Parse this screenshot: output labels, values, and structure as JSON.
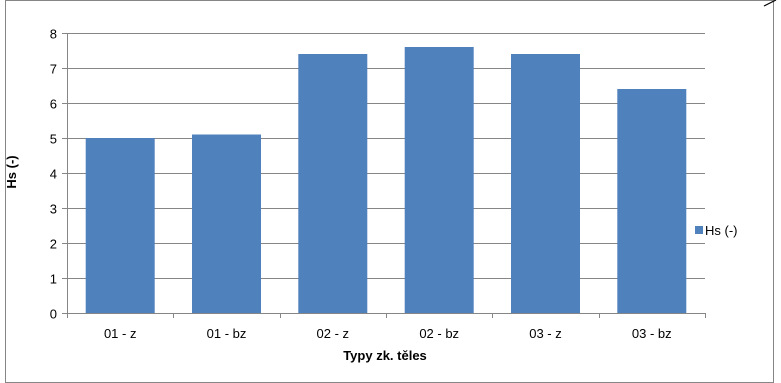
{
  "chart_data": {
    "type": "bar",
    "title": "",
    "xlabel": "Typy zk. těles",
    "ylabel": "Hs (-)",
    "categories": [
      "01 - z",
      "01 - bz",
      "02 - z",
      "02 - bz",
      "03 - z",
      "03 - bz"
    ],
    "series": [
      {
        "name": "Hs (-)",
        "values": [
          5.0,
          5.1,
          7.4,
          7.6,
          7.4,
          6.4
        ],
        "color": "#4f81bd"
      }
    ],
    "ylim": [
      0,
      8
    ],
    "yticks": [
      "0",
      "1",
      "2",
      "3",
      "4",
      "5",
      "6",
      "7",
      "8"
    ],
    "grid": true,
    "legend_position": "right"
  },
  "colors": {
    "gridline": "#868686",
    "axis": "#868686",
    "border": "#868686",
    "corner_mark": "#000000"
  }
}
